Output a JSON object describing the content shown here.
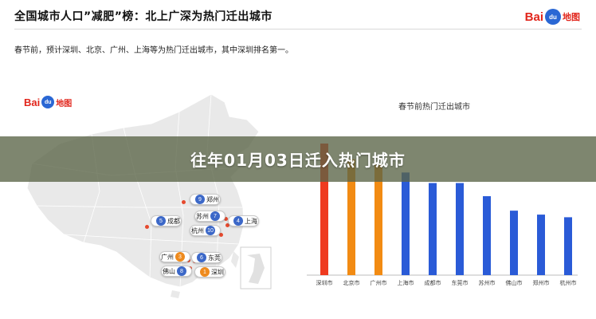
{
  "header": {
    "title": "全国城市人口”减肥”榜：北上广深为热门迁出城市",
    "logo_bai": "Bai",
    "logo_du": "du",
    "logo_map": "地图"
  },
  "subtitle": "春节前，预计深圳、北京、广州、上海等为热门迁出城市，其中深圳排名第一。",
  "map": {
    "logo_bai": "Bai",
    "logo_du": "du",
    "logo_map": "地图",
    "cities": [
      {
        "rank": "9",
        "name": "郑州",
        "color": "#3c68c8"
      },
      {
        "rank": "7",
        "name": "苏州",
        "color": "#3c68c8"
      },
      {
        "rank": "5",
        "name": "成都",
        "color": "#3c68c8"
      },
      {
        "rank": "4",
        "name": "上海",
        "color": "#3c68c8"
      },
      {
        "rank": "10",
        "name": "杭州",
        "color": "#3c68c8"
      },
      {
        "rank": "3",
        "name": "广州",
        "color": "#ee8a1d"
      },
      {
        "rank": "6",
        "name": "东莞",
        "color": "#3c68c8"
      },
      {
        "rank": "8",
        "name": "佛山",
        "color": "#3c68c8"
      },
      {
        "rank": "1",
        "name": "深圳",
        "color": "#ee8a1d"
      }
    ]
  },
  "chart": {
    "title": "春节前热门迁出城市",
    "categories": [
      "深圳市",
      "北京市",
      "广州市",
      "上海市",
      "成都市",
      "东莞市",
      "苏州市",
      "佛山市",
      "郑州市",
      "杭州市"
    ],
    "values": [
      100,
      88,
      84,
      78,
      70,
      70,
      60,
      49,
      46,
      44
    ],
    "bar_colors": [
      "#ef3a1f",
      "#f28b13",
      "#f28b13",
      "#2a5bd7",
      "#2a5bd7",
      "#2a5bd7",
      "#2a5bd7",
      "#2a5bd7",
      "#2a5bd7",
      "#2a5bd7"
    ]
  },
  "banner": {
    "text": "往年01月03日迁入热门城市"
  }
}
